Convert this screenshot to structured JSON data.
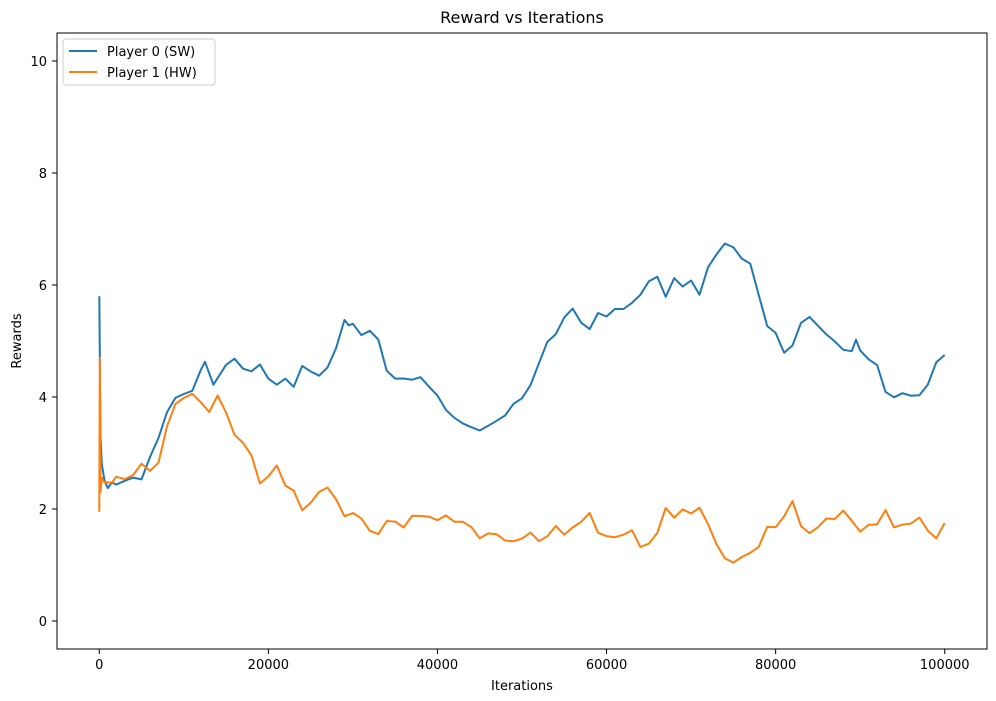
{
  "chart_data": {
    "type": "line",
    "title": "Reward vs Iterations",
    "xlabel": "Iterations",
    "ylabel": "Rewards",
    "xlim": [
      -5000,
      105000
    ],
    "ylim": [
      -0.5,
      10.5
    ],
    "xticks": [
      0,
      20000,
      40000,
      60000,
      80000,
      100000
    ],
    "yticks": [
      0,
      2,
      4,
      6,
      8,
      10
    ],
    "grid": false,
    "legend_position": "top-left",
    "series": [
      {
        "name": "Player 0 (SW)",
        "color": "#1f77b4",
        "x": [
          0,
          150,
          300,
          600,
          1000,
          1500,
          2000,
          3000,
          4000,
          5000,
          6000,
          7000,
          8000,
          9000,
          10000,
          11000,
          12000,
          12500,
          13500,
          15000,
          16000,
          17000,
          18000,
          19000,
          20000,
          21000,
          22000,
          23000,
          24000,
          25000,
          26000,
          27000,
          28000,
          29000,
          29500,
          30000,
          31000,
          32000,
          33000,
          34000,
          35000,
          36000,
          37000,
          38000,
          39000,
          40000,
          41000,
          42000,
          43000,
          44000,
          45000,
          46000,
          47000,
          48000,
          49000,
          50000,
          51000,
          52000,
          53000,
          54000,
          55000,
          56000,
          57000,
          58000,
          59000,
          60000,
          61000,
          62000,
          63000,
          64000,
          65000,
          66000,
          67000,
          68000,
          69000,
          70000,
          71000,
          72000,
          73000,
          74000,
          75000,
          76000,
          77000,
          78000,
          79000,
          80000,
          81000,
          82000,
          83000,
          84000,
          85000,
          86000,
          87000,
          88000,
          89000,
          89500,
          90000,
          91000,
          92000,
          93000,
          94000,
          95000,
          96000,
          97000,
          98000,
          99000,
          100000
        ],
        "y": [
          5.8,
          3.3,
          2.8,
          2.5,
          2.4,
          2.45,
          2.45,
          2.5,
          2.55,
          2.55,
          2.9,
          3.3,
          3.7,
          4.0,
          4.05,
          4.1,
          4.5,
          4.6,
          4.25,
          4.55,
          4.7,
          4.5,
          4.45,
          4.6,
          4.3,
          4.25,
          4.3,
          4.2,
          4.55,
          4.45,
          4.4,
          4.5,
          4.9,
          5.35,
          5.3,
          5.3,
          5.1,
          5.2,
          5.0,
          4.5,
          4.3,
          4.35,
          4.3,
          4.35,
          4.2,
          4.0,
          3.8,
          3.6,
          3.55,
          3.45,
          3.4,
          3.5,
          3.55,
          3.7,
          3.85,
          4.0,
          4.2,
          4.6,
          5.0,
          5.1,
          5.45,
          5.55,
          5.35,
          5.2,
          5.5,
          5.45,
          5.55,
          5.6,
          5.65,
          5.85,
          6.05,
          6.15,
          5.8,
          6.1,
          6.0,
          6.05,
          5.85,
          6.3,
          6.55,
          6.75,
          6.65,
          6.5,
          6.35,
          5.85,
          5.25,
          5.15,
          4.8,
          4.9,
          5.35,
          5.4,
          5.3,
          5.1,
          5.0,
          4.85,
          4.8,
          5.05,
          4.8,
          4.7,
          4.55,
          4.1,
          4.0,
          4.05,
          4.05,
          4.0,
          4.25,
          4.6,
          4.75
        ]
      },
      {
        "name": "Player 1 (HW)",
        "color": "#ff7f0e",
        "x": [
          0,
          60,
          150,
          300,
          600,
          1000,
          1500,
          2000,
          3000,
          4000,
          5000,
          6000,
          7000,
          8000,
          9000,
          10000,
          11000,
          12000,
          13000,
          14000,
          15000,
          16000,
          17000,
          18000,
          19000,
          20000,
          21000,
          22000,
          23000,
          24000,
          25000,
          26000,
          27000,
          28000,
          29000,
          30000,
          31000,
          32000,
          33000,
          34000,
          35000,
          36000,
          37000,
          38000,
          39000,
          40000,
          41000,
          42000,
          43000,
          44000,
          45000,
          46000,
          47000,
          48000,
          49000,
          50000,
          51000,
          52000,
          53000,
          54000,
          55000,
          56000,
          57000,
          58000,
          59000,
          60000,
          61000,
          62000,
          63000,
          64000,
          65000,
          66000,
          67000,
          68000,
          69000,
          70000,
          71000,
          72000,
          73000,
          74000,
          75000,
          76000,
          77000,
          78000,
          79000,
          80000,
          81000,
          82000,
          83000,
          84000,
          85000,
          86000,
          87000,
          88000,
          89000,
          90000,
          91000,
          92000,
          93000,
          94000,
          95000,
          96000,
          97000,
          98000,
          99000,
          100000
        ],
        "y": [
          1.95,
          4.7,
          2.3,
          2.55,
          2.5,
          2.45,
          2.5,
          2.55,
          2.55,
          2.6,
          2.8,
          2.7,
          2.8,
          3.5,
          3.85,
          4.0,
          4.05,
          3.9,
          3.75,
          4.0,
          3.75,
          3.3,
          3.2,
          2.95,
          2.45,
          2.6,
          2.75,
          2.45,
          2.3,
          2.0,
          2.1,
          2.3,
          2.4,
          2.15,
          1.9,
          1.9,
          1.85,
          1.6,
          1.55,
          1.8,
          1.75,
          1.7,
          1.85,
          1.9,
          1.85,
          1.8,
          1.9,
          1.75,
          1.8,
          1.65,
          1.5,
          1.55,
          1.55,
          1.45,
          1.4,
          1.5,
          1.55,
          1.45,
          1.5,
          1.7,
          1.55,
          1.65,
          1.8,
          1.9,
          1.6,
          1.5,
          1.5,
          1.55,
          1.6,
          1.35,
          1.35,
          1.6,
          2.0,
          1.85,
          2.0,
          1.9,
          2.05,
          1.7,
          1.4,
          1.1,
          1.05,
          1.15,
          1.2,
          1.35,
          1.65,
          1.7,
          1.85,
          2.15,
          1.7,
          1.55,
          1.7,
          1.8,
          1.85,
          1.95,
          1.8,
          1.6,
          1.7,
          1.75,
          1.95,
          1.7,
          1.7,
          1.75,
          1.85,
          1.6,
          1.5,
          1.75
        ]
      }
    ]
  }
}
